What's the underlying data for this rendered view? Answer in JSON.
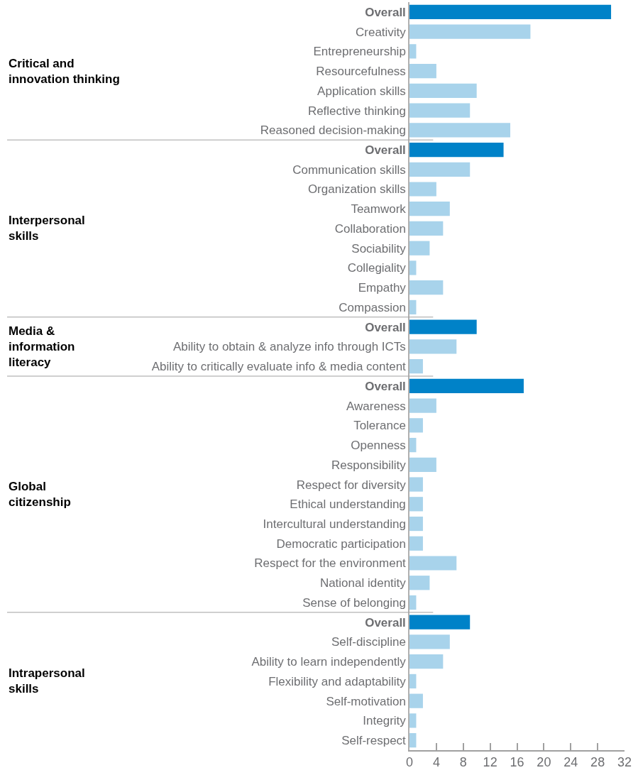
{
  "chart_data": {
    "type": "bar",
    "orientation": "horizontal",
    "categories": [
      "Overall",
      "Creativity",
      "Entrepreneurship",
      "Resourcefulness",
      "Application skills",
      "Reflective thinking",
      "Reasoned decision-making",
      "Overall",
      "Communication skills",
      "Organization skills",
      "Teamwork",
      "Collaboration",
      "Sociability",
      "Collegiality",
      "Empathy",
      "Compassion",
      "Overall",
      "Ability to obtain & analyze info through ICTs",
      "Ability to critically evaluate info & media content",
      "Overall",
      "Awareness",
      "Tolerance",
      "Openness",
      "Responsibility",
      "Respect for diversity",
      "Ethical understanding",
      "Intercultural understanding",
      "Democratic participation",
      "Respect for the environment",
      "National identity",
      "Sense of belonging",
      "Overall",
      "Self-discipline",
      "Ability to learn independently",
      "Flexibility and adaptability",
      "Self-motivation",
      "Integrity",
      "Self-respect"
    ],
    "values": [
      30,
      18,
      1,
      4,
      10,
      9,
      15,
      14,
      9,
      4,
      6,
      5,
      3,
      1,
      5,
      1,
      10,
      7,
      2,
      17,
      4,
      2,
      1,
      4,
      2,
      2,
      2,
      2,
      7,
      3,
      1,
      9,
      6,
      5,
      1,
      2,
      1,
      1
    ],
    "colors": [
      "#0082c8",
      "#a8d3eb",
      "#a8d3eb",
      "#a8d3eb",
      "#a8d3eb",
      "#a8d3eb",
      "#a8d3eb",
      "#0082c8",
      "#a8d3eb",
      "#a8d3eb",
      "#a8d3eb",
      "#a8d3eb",
      "#a8d3eb",
      "#a8d3eb",
      "#a8d3eb",
      "#a8d3eb",
      "#0082c8",
      "#a8d3eb",
      "#a8d3eb",
      "#0082c8",
      "#a8d3eb",
      "#a8d3eb",
      "#a8d3eb",
      "#a8d3eb",
      "#a8d3eb",
      "#a8d3eb",
      "#a8d3eb",
      "#a8d3eb",
      "#a8d3eb",
      "#a8d3eb",
      "#a8d3eb",
      "#0082c8",
      "#a8d3eb",
      "#a8d3eb",
      "#a8d3eb",
      "#a8d3eb",
      "#a8d3eb",
      "#a8d3eb"
    ],
    "xlim": [
      0,
      32
    ],
    "xticks": [
      0,
      4,
      8,
      12,
      16,
      20,
      24,
      28,
      32
    ],
    "annotations": [
      "Critical and\ninnovation thinking",
      "Interpersonal\nskills",
      "Media &\ninformation\nliteracy",
      "Global\ncitizenship",
      "Intrapersonal\nskills"
    ]
  }
}
